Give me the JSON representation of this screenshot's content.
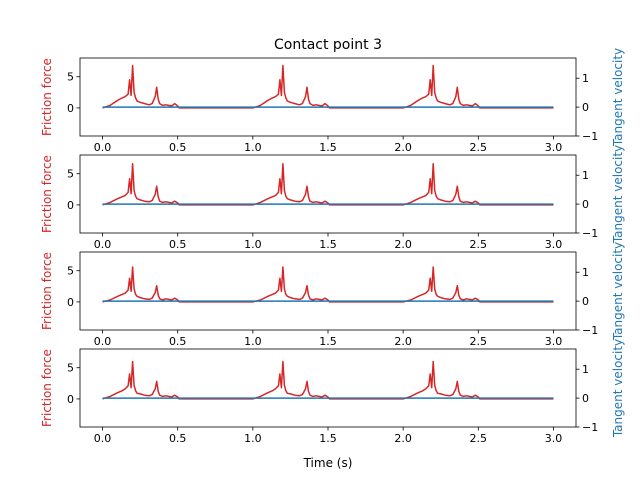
{
  "chart_data": {
    "type": "line",
    "title": "Contact point 3",
    "xlabel": "Time (s)",
    "left_ylabel": "Friction force",
    "right_ylabel": "Tangent velocity",
    "colors": {
      "friction": "#d62728",
      "velocity": "#1f77b4",
      "axis": "#000000"
    },
    "xlim": [
      -0.15,
      3.15
    ],
    "left_ylim": [
      -4.5,
      8
    ],
    "right_ylim": [
      -1,
      1.7
    ],
    "xticks": [
      0.0,
      0.5,
      1.0,
      1.5,
      2.0,
      2.5,
      3.0
    ],
    "xtick_labels": [
      "0.0",
      "0.5",
      "1.0",
      "1.5",
      "2.0",
      "2.5",
      "3.0"
    ],
    "left_yticks": [
      0,
      5
    ],
    "left_ytick_labels": [
      "0",
      "5"
    ],
    "right_yticks": [
      -1,
      0,
      1
    ],
    "right_ytick_labels": [
      "−1",
      "0",
      "1"
    ],
    "panels": [
      {
        "series": [
          {
            "axis": "left",
            "pattern_period": 1.0,
            "pattern_active": [
              0.0,
              0.5
            ],
            "x": [
              0.0,
              0.05,
              0.1,
              0.13,
              0.15,
              0.17,
              0.18,
              0.19,
              0.2,
              0.21,
              0.215,
              0.22,
              0.23,
              0.25,
              0.28,
              0.31,
              0.33,
              0.35,
              0.36,
              0.37,
              0.38,
              0.4,
              0.42,
              0.44,
              0.46,
              0.48,
              0.5,
              0.51
            ],
            "y": [
              0.0,
              0.4,
              1.2,
              1.6,
              1.8,
              2.2,
              4.5,
              2.0,
              6.8,
              2.5,
              2.0,
              1.6,
              1.1,
              0.9,
              0.7,
              0.5,
              0.7,
              1.8,
              3.3,
              1.4,
              0.7,
              0.4,
              0.5,
              0.4,
              0.3,
              0.7,
              0.3,
              0.0
            ]
          },
          {
            "axis": "right",
            "x": [
              0,
              3.0
            ],
            "y": [
              0,
              0
            ]
          }
        ]
      },
      {
        "series": [
          {
            "axis": "left",
            "pattern_period": 1.0,
            "pattern_active": [
              0.0,
              0.5
            ],
            "x": [
              0.0,
              0.05,
              0.1,
              0.13,
              0.15,
              0.17,
              0.18,
              0.19,
              0.2,
              0.21,
              0.215,
              0.22,
              0.23,
              0.25,
              0.28,
              0.31,
              0.33,
              0.35,
              0.36,
              0.37,
              0.38,
              0.4,
              0.42,
              0.44,
              0.46,
              0.48,
              0.5,
              0.51
            ],
            "y": [
              0.0,
              0.4,
              1.0,
              1.3,
              1.5,
              2.0,
              4.2,
              1.8,
              6.6,
              2.3,
              1.8,
              1.4,
              1.0,
              0.8,
              0.6,
              0.5,
              0.7,
              1.7,
              3.0,
              1.3,
              0.6,
              0.4,
              0.5,
              0.4,
              0.3,
              0.6,
              0.3,
              0.0
            ]
          },
          {
            "axis": "right",
            "x": [
              0,
              3.0
            ],
            "y": [
              0,
              0
            ]
          }
        ]
      },
      {
        "series": [
          {
            "axis": "left",
            "pattern_period": 1.0,
            "pattern_active": [
              0.0,
              0.5
            ],
            "x": [
              0.0,
              0.05,
              0.1,
              0.13,
              0.15,
              0.17,
              0.18,
              0.19,
              0.2,
              0.21,
              0.215,
              0.22,
              0.23,
              0.25,
              0.28,
              0.31,
              0.33,
              0.35,
              0.36,
              0.37,
              0.38,
              0.4,
              0.42,
              0.44,
              0.46,
              0.48,
              0.5,
              0.51
            ],
            "y": [
              0.0,
              0.3,
              0.9,
              1.2,
              1.4,
              1.9,
              3.8,
              1.7,
              5.6,
              2.1,
              1.6,
              1.2,
              0.9,
              0.7,
              0.5,
              0.4,
              0.6,
              1.5,
              2.6,
              1.1,
              0.5,
              0.3,
              0.5,
              0.4,
              0.3,
              0.6,
              0.3,
              0.0
            ]
          },
          {
            "axis": "right",
            "x": [
              0,
              3.0
            ],
            "y": [
              0,
              0
            ]
          }
        ]
      },
      {
        "series": [
          {
            "axis": "left",
            "pattern_period": 1.0,
            "pattern_active": [
              0.0,
              0.5
            ],
            "x": [
              0.0,
              0.05,
              0.1,
              0.13,
              0.15,
              0.17,
              0.18,
              0.19,
              0.2,
              0.21,
              0.215,
              0.22,
              0.23,
              0.25,
              0.28,
              0.31,
              0.33,
              0.35,
              0.36,
              0.37,
              0.38,
              0.4,
              0.42,
              0.44,
              0.46,
              0.48,
              0.5,
              0.51
            ],
            "y": [
              0.0,
              0.4,
              1.0,
              1.3,
              1.6,
              2.1,
              4.0,
              1.8,
              6.0,
              2.2,
              1.7,
              1.3,
              0.9,
              0.8,
              0.6,
              0.5,
              0.7,
              1.6,
              2.8,
              1.2,
              0.6,
              0.4,
              0.5,
              0.4,
              0.3,
              0.6,
              0.3,
              0.0
            ]
          },
          {
            "axis": "right",
            "x": [
              0,
              3.0
            ],
            "y": [
              0,
              0
            ]
          }
        ]
      }
    ]
  }
}
